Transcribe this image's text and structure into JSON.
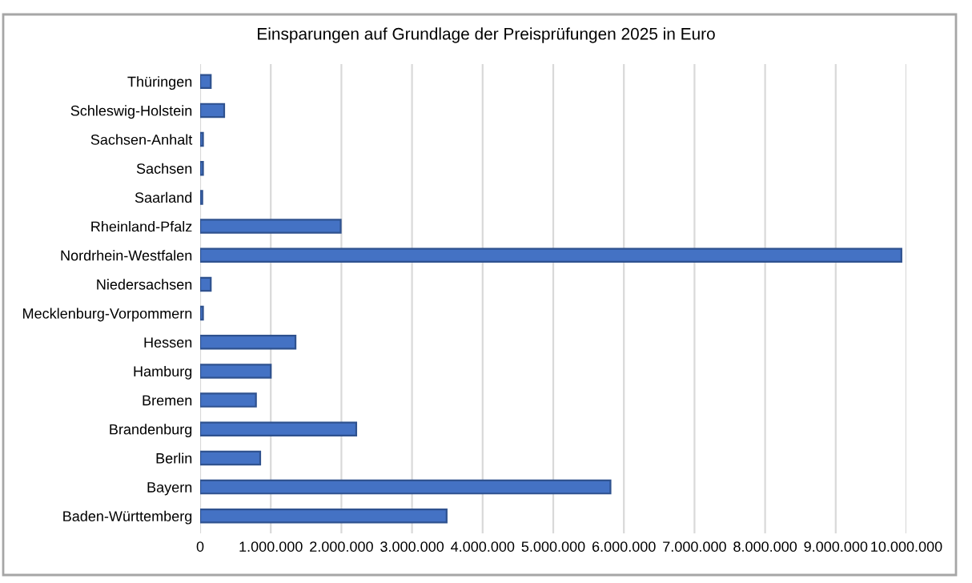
{
  "chart_data": {
    "type": "bar",
    "orientation": "horizontal",
    "title": "Einsparungen auf Grundlage der Preisprüfungen 2025 in Euro",
    "categories": [
      "Thüringen",
      "Schleswig-Holstein",
      "Sachsen-Anhalt",
      "Sachsen",
      "Saarland",
      "Rheinland-Pfalz",
      "Nordrhein-Westfalen",
      "Niedersachsen",
      "Mecklenburg-Vorpommern",
      "Hessen",
      "Hamburg",
      "Bremen",
      "Brandenburg",
      "Berlin",
      "Bayern",
      "Baden-Württemberg"
    ],
    "values": [
      150000,
      340000,
      40000,
      40000,
      30000,
      1990000,
      9930000,
      150000,
      40000,
      1350000,
      1000000,
      790000,
      2210000,
      850000,
      5810000,
      3490000
    ],
    "color": "#4472c4",
    "xlim": [
      0,
      10000000
    ],
    "xticks": [
      0,
      {
        "value": 1000000,
        "label": "1.000.000"
      },
      {
        "value": 2000000,
        "label": "2.000.000"
      },
      {
        "value": 3000000,
        "label": "3.000.000"
      },
      {
        "value": 4000000,
        "label": "4.000.000"
      },
      {
        "value": 5000000,
        "label": "5.000.000"
      },
      {
        "value": 6000000,
        "label": "6.000.000"
      },
      {
        "value": 7000000,
        "label": "7.000.000"
      },
      {
        "value": 8000000,
        "label": "8.000.000"
      },
      {
        "value": 9000000,
        "label": "9.000.000"
      },
      {
        "value": 10000000,
        "label": "10.000.000"
      }
    ],
    "grid": "x",
    "legend": false
  }
}
